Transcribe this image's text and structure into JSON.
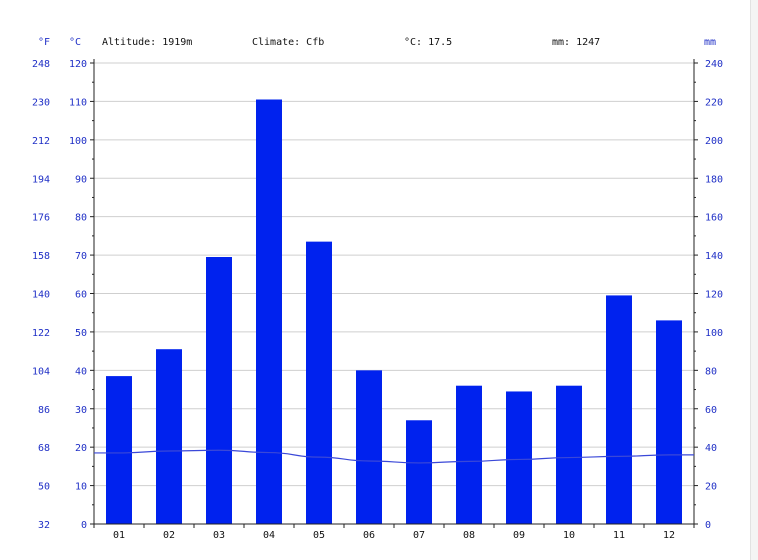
{
  "chart_data": {
    "type": "bar",
    "header": {
      "altitude": "Altitude: 1919m",
      "climate": "Climate: Cfb",
      "temp_avg": "°C: 17.5",
      "precip_total": "mm: 1247"
    },
    "axis_units": {
      "fahrenheit": "°F",
      "celsius": "°C",
      "millimeters": "mm"
    },
    "categories": [
      "01",
      "02",
      "03",
      "04",
      "05",
      "06",
      "07",
      "08",
      "09",
      "10",
      "11",
      "12"
    ],
    "series": [
      {
        "kind": "bar",
        "axis": "right",
        "color": "#0022ee",
        "values": [
          77,
          91,
          139,
          221,
          147,
          80,
          54,
          72,
          69,
          72,
          119,
          106
        ]
      },
      {
        "kind": "line",
        "axis": "left",
        "color": "#3a48d8",
        "values": [
          18.5,
          19.0,
          19.2,
          18.6,
          17.4,
          16.4,
          15.9,
          16.3,
          16.8,
          17.3,
          17.6,
          18.0
        ]
      }
    ],
    "left_axis_celsius": {
      "range": [
        0,
        120
      ],
      "ticks": [
        "0",
        "10",
        "20",
        "30",
        "40",
        "50",
        "60",
        "70",
        "80",
        "90",
        "100",
        "110",
        "120"
      ]
    },
    "left_axis_fahrenheit": {
      "ticks": [
        "32",
        "50",
        "68",
        "86",
        "104",
        "122",
        "140",
        "158",
        "176",
        "194",
        "212",
        "230",
        "248"
      ]
    },
    "right_axis_mm": {
      "range": [
        0,
        240
      ],
      "ticks": [
        "0",
        "20",
        "40",
        "60",
        "80",
        "100",
        "120",
        "140",
        "160",
        "180",
        "200",
        "220",
        "240"
      ]
    },
    "grid": true,
    "legend": "none"
  }
}
